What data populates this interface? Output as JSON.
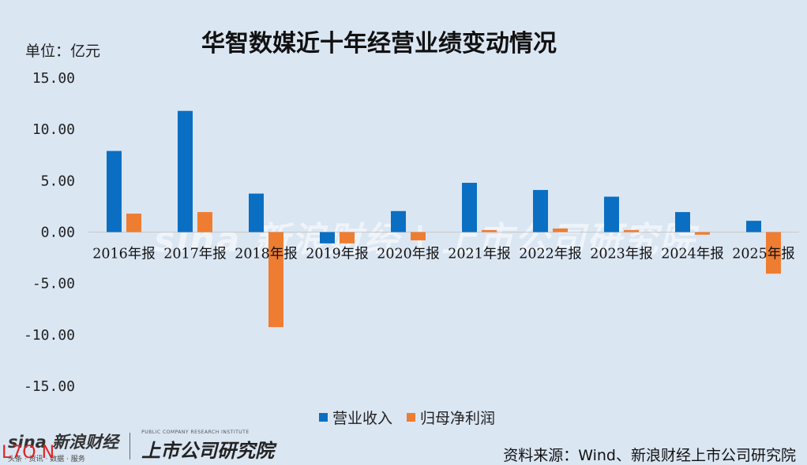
{
  "title": "华智数媒近十年经营业绩变动情况",
  "unit_label": "单位：亿元",
  "source": "资料来源：Wind、新浪财经上市公司研究院",
  "watermark": "sina 新浪财经 | 上市公司研究院",
  "brand": {
    "sina_name": "sina 新浪财经",
    "sina_sub": "头条 · 资讯 · 数据 · 服务",
    "institute": "上市公司研究院",
    "institute_sub": "PUBLIC COMPANY RESEARCH INSTITUTE",
    "corner_text": "L7O N"
  },
  "colors": {
    "revenue": "#0a6fc2",
    "net_profit": "#ef7d31",
    "background": "#dbe6f3"
  },
  "chart_data": {
    "type": "bar",
    "title": "华智数媒近十年经营业绩变动情况",
    "ylabel": "单位：亿元",
    "ylim": [
      -15,
      15
    ],
    "yticks": [
      "15.00",
      "10.00",
      "5.00",
      "0.00",
      "-5.00",
      "-10.00",
      "-15.00"
    ],
    "ytick_values": [
      15,
      10,
      5,
      0,
      -5,
      -10,
      -15
    ],
    "categories": [
      "2016年报",
      "2017年报",
      "2018年报",
      "2019年报",
      "2020年报",
      "2021年报",
      "2022年报",
      "2023年报",
      "2024年报",
      "2025年报"
    ],
    "series": [
      {
        "name": "营业收入",
        "values": [
          7.9,
          11.8,
          3.75,
          -1.1,
          2.05,
          4.8,
          4.1,
          3.45,
          1.95,
          1.1
        ]
      },
      {
        "name": "归母净利润",
        "values": [
          1.8,
          1.95,
          -9.25,
          -1.1,
          -0.8,
          0.2,
          0.35,
          0.2,
          -0.25,
          -4.05
        ]
      }
    ],
    "legend": "bottom",
    "grid": false
  }
}
